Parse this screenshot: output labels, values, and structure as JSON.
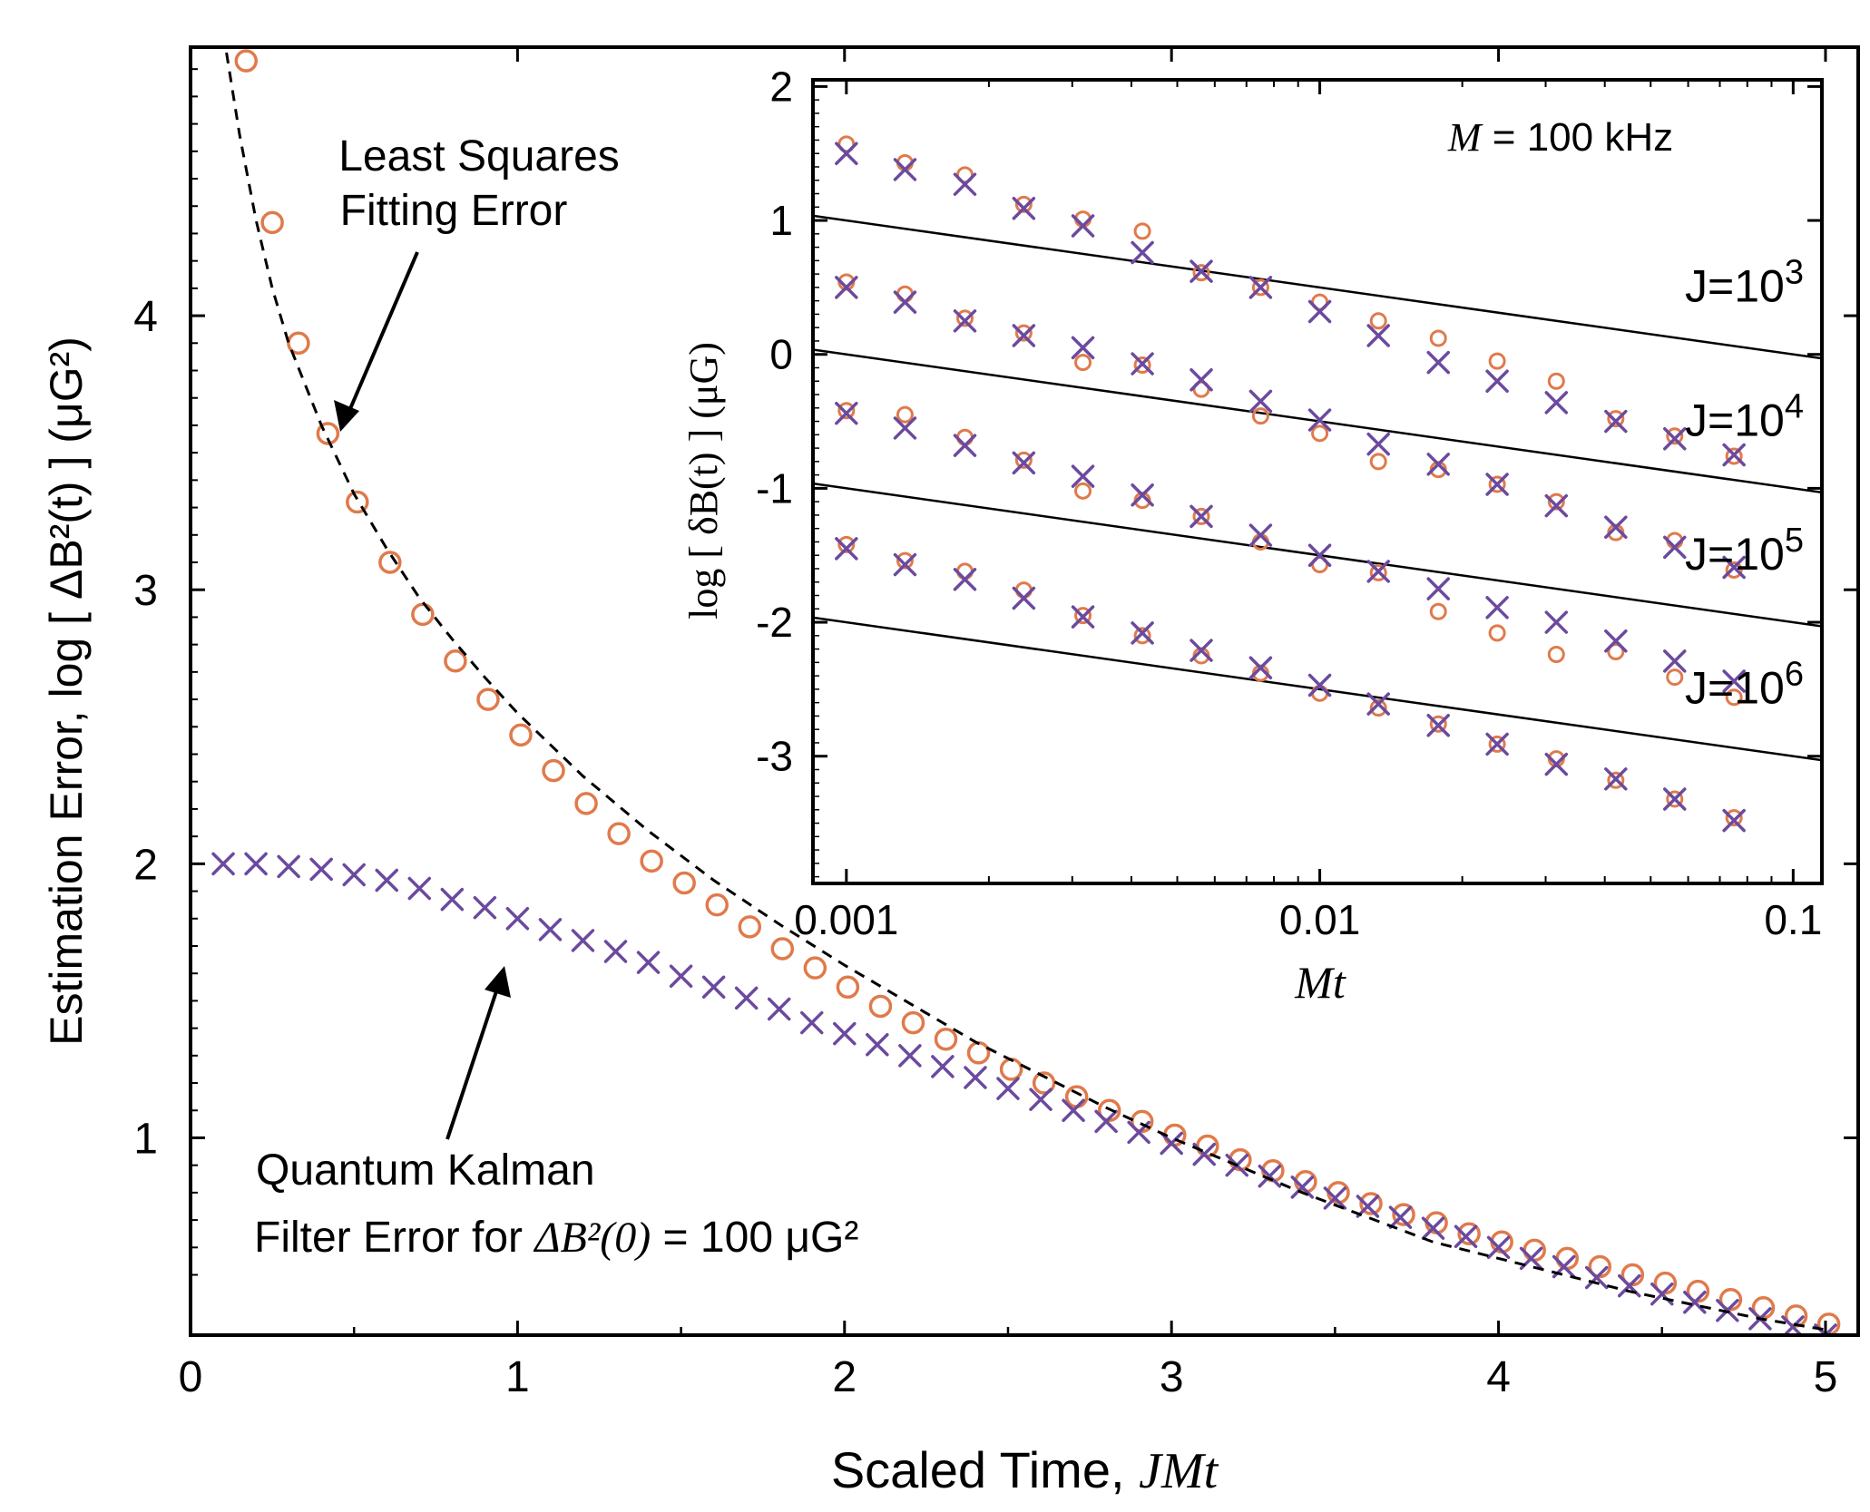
{
  "chart_data": [
    {
      "id": "main",
      "type": "scatter",
      "xlabel": "Scaled Time, ",
      "xlabel_italic": "JMt",
      "ylabel": "Estimation Error, log [ ΔB²(t) ] (μG²)",
      "xlim": [
        0,
        5.1
      ],
      "ylim": [
        0.28,
        4.98
      ],
      "xticks": [
        0,
        1,
        2,
        3,
        4,
        5
      ],
      "yticks": [
        1,
        2,
        3,
        4
      ],
      "series": [
        {
          "name": "Least Squares Fitting Error",
          "marker": "circle",
          "color": "#e07a4b",
          "x": [
            0.17,
            0.25,
            0.33,
            0.42,
            0.51,
            0.61,
            0.71,
            0.81,
            0.91,
            1.01,
            1.11,
            1.21,
            1.31,
            1.41,
            1.51,
            1.61,
            1.71,
            1.81,
            1.91,
            2.01,
            2.11,
            2.21,
            2.31,
            2.41,
            2.51,
            2.61,
            2.71,
            2.81,
            2.91,
            3.01,
            3.11,
            3.21,
            3.31,
            3.41,
            3.51,
            3.61,
            3.71,
            3.81,
            3.91,
            4.01,
            4.11,
            4.21,
            4.31,
            4.41,
            4.51,
            4.61,
            4.71,
            4.81,
            4.91,
            5.01
          ],
          "y": [
            4.93,
            4.34,
            3.9,
            3.57,
            3.32,
            3.1,
            2.91,
            2.74,
            2.6,
            2.47,
            2.34,
            2.22,
            2.11,
            2.01,
            1.93,
            1.85,
            1.77,
            1.69,
            1.62,
            1.55,
            1.48,
            1.42,
            1.36,
            1.31,
            1.25,
            1.2,
            1.15,
            1.1,
            1.06,
            1.01,
            0.97,
            0.92,
            0.88,
            0.84,
            0.8,
            0.76,
            0.72,
            0.69,
            0.65,
            0.62,
            0.59,
            0.56,
            0.53,
            0.5,
            0.47,
            0.44,
            0.41,
            0.38,
            0.35,
            0.32
          ]
        },
        {
          "name": "Quantum Kalman Filter Error",
          "marker": "cross",
          "color": "#6b4a9e",
          "x": [
            0.1,
            0.2,
            0.3,
            0.4,
            0.5,
            0.6,
            0.7,
            0.8,
            0.9,
            1.0,
            1.1,
            1.2,
            1.3,
            1.4,
            1.5,
            1.6,
            1.7,
            1.8,
            1.9,
            2.0,
            2.1,
            2.2,
            2.3,
            2.4,
            2.5,
            2.6,
            2.7,
            2.8,
            2.9,
            3.0,
            3.1,
            3.2,
            3.3,
            3.4,
            3.5,
            3.6,
            3.7,
            3.8,
            3.9,
            4.0,
            4.1,
            4.2,
            4.3,
            4.4,
            4.5,
            4.6,
            4.7,
            4.8,
            4.9,
            5.0
          ],
          "y": [
            2.0,
            2.0,
            1.99,
            1.98,
            1.96,
            1.94,
            1.91,
            1.87,
            1.84,
            1.8,
            1.76,
            1.72,
            1.68,
            1.64,
            1.59,
            1.55,
            1.51,
            1.47,
            1.42,
            1.38,
            1.34,
            1.3,
            1.26,
            1.22,
            1.18,
            1.14,
            1.1,
            1.06,
            1.02,
            0.98,
            0.94,
            0.9,
            0.86,
            0.82,
            0.78,
            0.75,
            0.71,
            0.67,
            0.64,
            0.6,
            0.56,
            0.53,
            0.49,
            0.46,
            0.43,
            0.4,
            0.37,
            0.34,
            0.31,
            0.28
          ]
        },
        {
          "name": "Dashed reference curve",
          "marker": "none",
          "style": "dashed",
          "color": "#000000",
          "x": [
            0.11,
            0.15,
            0.2,
            0.25,
            0.3,
            0.4,
            0.5,
            0.6,
            0.7,
            0.8,
            0.9,
            1.0,
            1.2,
            1.4,
            1.6,
            1.8,
            2.0,
            2.2,
            2.4,
            2.6,
            2.8,
            3.0,
            3.2,
            3.4,
            3.6,
            3.8,
            4.0,
            4.2,
            4.4,
            4.6,
            4.8,
            5.0
          ],
          "y": [
            4.96,
            4.66,
            4.35,
            4.1,
            3.9,
            3.6,
            3.35,
            3.15,
            2.97,
            2.82,
            2.68,
            2.55,
            2.32,
            2.12,
            1.94,
            1.78,
            1.63,
            1.49,
            1.35,
            1.23,
            1.11,
            1.0,
            0.9,
            0.8,
            0.71,
            0.62,
            0.56,
            0.5,
            0.44,
            0.39,
            0.34,
            0.3
          ]
        }
      ],
      "annotations": [
        {
          "line1": "Least Squares",
          "line2": "Fitting Error"
        },
        {
          "line1": "Quantum Kalman",
          "line2_prefix": "Filter Error for ",
          "line2_math": "ΔB²(0)",
          "line2_suffix": " = 100 μG²"
        }
      ]
    },
    {
      "id": "inset",
      "type": "line",
      "xscale": "log",
      "xlabel": "Mt",
      "ylabel": "log [ δB(t) ] (μG)",
      "xlim": [
        0.00085,
        0.115
      ],
      "ylim": [
        -3.95,
        2.05
      ],
      "xticks": [
        0.001,
        0.01,
        0.1
      ],
      "xtick_labels": [
        "0.001",
        "0.01",
        "0.1"
      ],
      "yticks": [
        -3,
        -2,
        -1,
        0,
        1,
        2
      ],
      "ytick_labels": [
        "-3",
        "-2",
        "-1",
        "0",
        "1",
        "2"
      ],
      "title_note_var": "M",
      "title_note_rest": " = 100 kHz",
      "x": [
        0.001,
        0.00133,
        0.00178,
        0.00237,
        0.00316,
        0.00422,
        0.00562,
        0.0075,
        0.01,
        0.0133,
        0.0178,
        0.0237,
        0.0316,
        0.0422,
        0.0562,
        0.075
      ],
      "series": [
        {
          "name": "J=10^3",
          "label_base": "J=10",
          "label_exp": "3",
          "fit_line": [
            1.0,
            -0.5
          ],
          "crosses": [
            1.5,
            1.38,
            1.27,
            1.09,
            0.96,
            0.76,
            0.62,
            0.5,
            0.32,
            0.14,
            -0.06,
            -0.2,
            -0.36,
            -0.5,
            -0.63,
            -0.75
          ],
          "circles": [
            1.57,
            1.43,
            1.34,
            1.12,
            1.01,
            0.92,
            0.61,
            0.5,
            0.39,
            0.25,
            0.12,
            -0.05,
            -0.2,
            -0.48,
            -0.61,
            -0.76
          ]
        },
        {
          "name": "J=10^4",
          "label_base": "J=10",
          "label_exp": "4",
          "fit_line": [
            0.0,
            -0.5
          ],
          "crosses": [
            0.5,
            0.39,
            0.25,
            0.14,
            0.05,
            -0.07,
            -0.19,
            -0.35,
            -0.49,
            -0.67,
            -0.82,
            -0.97,
            -1.13,
            -1.29,
            -1.44,
            -1.59
          ],
          "circles": [
            0.54,
            0.45,
            0.27,
            0.16,
            -0.06,
            -0.08,
            -0.26,
            -0.46,
            -0.59,
            -0.8,
            -0.86,
            -0.97,
            -1.1,
            -1.33,
            -1.39,
            -1.61
          ]
        },
        {
          "name": "J=10^5",
          "label_base": "J=10",
          "label_exp": "5",
          "fit_line": [
            -1.0,
            -0.5
          ],
          "crosses": [
            -0.44,
            -0.55,
            -0.68,
            -0.81,
            -0.91,
            -1.05,
            -1.21,
            -1.35,
            -1.5,
            -1.62,
            -1.75,
            -1.89,
            -2.0,
            -2.14,
            -2.29,
            -2.44
          ],
          "circles": [
            -0.42,
            -0.45,
            -0.62,
            -0.79,
            -1.02,
            -1.09,
            -1.21,
            -1.4,
            -1.57,
            -1.63,
            -1.92,
            -2.08,
            -2.24,
            -2.22,
            -2.41,
            -2.56
          ]
        },
        {
          "name": "J=10^6",
          "label_base": "J=10",
          "label_exp": "6",
          "fit_line": [
            -2.0,
            -0.5
          ],
          "crosses": [
            -1.45,
            -1.57,
            -1.68,
            -1.82,
            -1.96,
            -2.08,
            -2.21,
            -2.34,
            -2.47,
            -2.61,
            -2.77,
            -2.91,
            -3.06,
            -3.17,
            -3.32,
            -3.48
          ],
          "circles": [
            -1.42,
            -1.54,
            -1.62,
            -1.76,
            -1.95,
            -2.1,
            -2.25,
            -2.38,
            -2.53,
            -2.64,
            -2.76,
            -2.91,
            -3.02,
            -3.18,
            -3.32,
            -3.46
          ]
        }
      ]
    }
  ]
}
